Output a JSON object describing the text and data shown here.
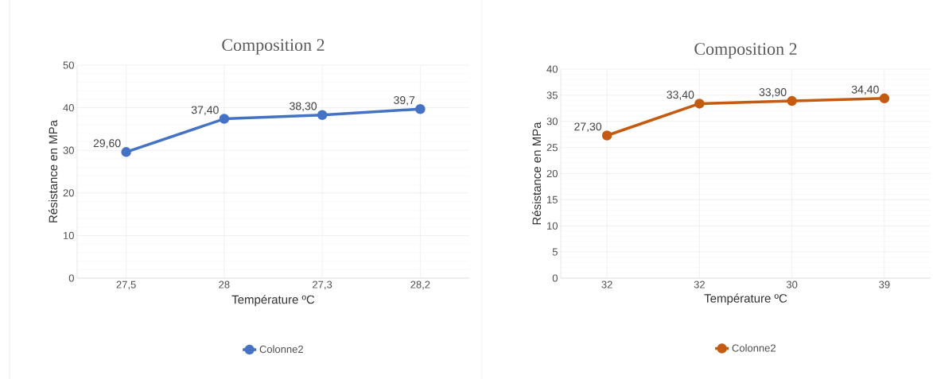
{
  "chart_data": [
    {
      "type": "line",
      "title": "Composition 2",
      "xlabel": "Température ºC",
      "ylabel": "Résistance  en MPa",
      "categories": [
        "27,5",
        "28",
        "27,3",
        "28,2"
      ],
      "series": [
        {
          "name": "Colonne2",
          "color": "#4472c4",
          "values": [
            29.6,
            37.4,
            38.3,
            39.7
          ],
          "value_labels": [
            "29,60",
            "37,40",
            "38,30",
            "39,7"
          ]
        }
      ],
      "ylim": [
        0,
        50
      ],
      "yticks": [
        0,
        10,
        20,
        30,
        40,
        50
      ],
      "grid": true,
      "legend": "bottom",
      "marker": "circle",
      "line_style": "solid"
    },
    {
      "type": "line",
      "title": "Composition 2",
      "xlabel": "Température ºC",
      "ylabel": "Résistance  en MPa",
      "categories": [
        "32",
        "32",
        "30",
        "39"
      ],
      "series": [
        {
          "name": "Colonne2",
          "color": "#c55a11",
          "values": [
            27.3,
            33.4,
            33.9,
            34.4
          ],
          "value_labels": [
            "27,30",
            "33,40",
            "33,90",
            "34,40"
          ]
        }
      ],
      "ylim": [
        0,
        40
      ],
      "yticks": [
        0,
        5,
        10,
        15,
        20,
        25,
        30,
        35,
        40
      ],
      "grid": true,
      "legend": "bottom",
      "marker": "circle",
      "line_style": "solid"
    }
  ]
}
